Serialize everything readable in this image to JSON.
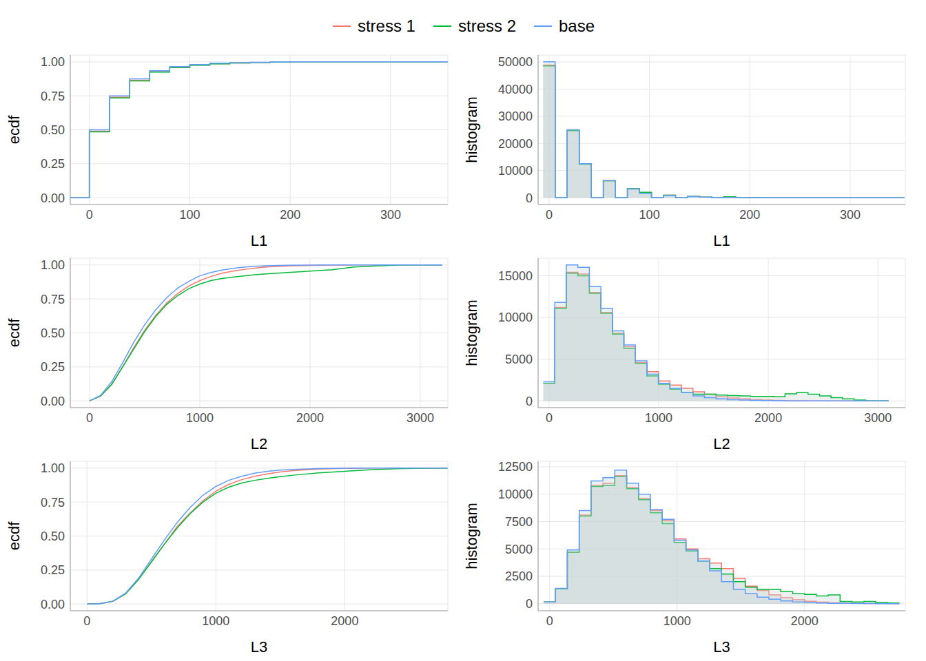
{
  "chart_data": [
    {
      "type": "line",
      "line_style": "step",
      "legend": "top",
      "grid": true,
      "xlabel": "L1",
      "ylabel": "ecdf",
      "x": [
        -19,
        0,
        20,
        40,
        60,
        80,
        100,
        120,
        140,
        160,
        180,
        200,
        357
      ],
      "series": [
        {
          "name": "stress 1",
          "color": "#F8766D",
          "values": [
            0,
            0.49,
            0.74,
            0.865,
            0.928,
            0.96,
            0.976,
            0.987,
            0.992,
            0.996,
            0.998,
            1,
            1
          ]
        },
        {
          "name": "stress 2",
          "color": "#00BA38",
          "values": [
            0,
            0.485,
            0.735,
            0.86,
            0.925,
            0.957,
            0.975,
            0.986,
            0.992,
            0.995,
            0.998,
            1,
            1
          ]
        },
        {
          "name": "base",
          "color": "#619CFF",
          "values": [
            0,
            0.5,
            0.75,
            0.875,
            0.935,
            0.965,
            0.98,
            0.99,
            0.994,
            0.997,
            0.999,
            1,
            1
          ]
        }
      ],
      "xlim": [
        -19,
        357
      ],
      "xticks": [
        0,
        100,
        200,
        300
      ],
      "ylim": [
        -0.05,
        1.05
      ],
      "yticks": [
        {
          "value": 0,
          "label": "0.00"
        },
        {
          "value": 0.25,
          "label": "0.25"
        },
        {
          "value": 0.5,
          "label": "0.50"
        },
        {
          "value": 0.75,
          "label": "0.75"
        },
        {
          "value": 1,
          "label": "1.00"
        }
      ]
    },
    {
      "type": "histogram",
      "grid": true,
      "xlabel": "L1",
      "ylabel": "histogram",
      "bins": [
        -6,
        6,
        18,
        30,
        42,
        54,
        66,
        78,
        90,
        102,
        114,
        126,
        138,
        150,
        162,
        174,
        186,
        198,
        210,
        222,
        234,
        246,
        258,
        270,
        282,
        294,
        306,
        318,
        330,
        342,
        354
      ],
      "series": [
        {
          "name": "stress 1",
          "color": "#F8766D",
          "values": [
            48800,
            0,
            24800,
            12400,
            0,
            6300,
            0,
            3300,
            1800,
            0,
            900,
            0,
            450,
            230,
            0,
            120,
            0,
            60,
            0,
            0,
            0,
            0,
            0,
            0,
            0,
            0,
            0,
            0,
            0,
            0
          ]
        },
        {
          "name": "stress 2",
          "color": "#00BA38",
          "values": [
            48500,
            0,
            24700,
            12300,
            0,
            6200,
            0,
            3300,
            2000,
            0,
            950,
            0,
            500,
            250,
            0,
            350,
            0,
            80,
            0,
            0,
            0,
            0,
            0,
            0,
            0,
            0,
            0,
            0,
            0,
            0
          ]
        },
        {
          "name": "base",
          "color": "#619CFF",
          "values": [
            50000,
            0,
            25000,
            12500,
            0,
            6300,
            0,
            3200,
            1600,
            0,
            800,
            0,
            400,
            200,
            0,
            100,
            0,
            50,
            0,
            0,
            0,
            0,
            0,
            0,
            0,
            0,
            0,
            0,
            0,
            0
          ]
        }
      ],
      "xlim": [
        -11,
        355
      ],
      "xticks": [
        0,
        100,
        200,
        300
      ],
      "ylim": [
        -2500,
        52500
      ],
      "yticks": [
        0,
        10000,
        20000,
        30000,
        40000,
        50000
      ]
    },
    {
      "type": "line",
      "grid": true,
      "xlabel": "L2",
      "ylabel": "ecdf",
      "x": [
        0,
        100,
        200,
        300,
        400,
        500,
        600,
        700,
        800,
        900,
        1000,
        1100,
        1200,
        1300,
        1400,
        1500,
        1600,
        1800,
        2000,
        2200,
        2400,
        2600,
        2800,
        3000,
        3200
      ],
      "series": [
        {
          "name": "stress 1",
          "color": "#F8766D",
          "values": [
            0,
            0.035,
            0.12,
            0.25,
            0.39,
            0.52,
            0.63,
            0.72,
            0.79,
            0.845,
            0.885,
            0.915,
            0.94,
            0.955,
            0.967,
            0.977,
            0.985,
            0.993,
            0.997,
            0.999,
            1,
            1,
            1,
            1,
            1
          ]
        },
        {
          "name": "stress 2",
          "color": "#00BA38",
          "values": [
            0,
            0.035,
            0.12,
            0.25,
            0.38,
            0.51,
            0.62,
            0.71,
            0.775,
            0.825,
            0.86,
            0.885,
            0.9,
            0.91,
            0.92,
            0.928,
            0.935,
            0.945,
            0.955,
            0.965,
            0.985,
            0.993,
            0.999,
            1,
            1
          ]
        },
        {
          "name": "base",
          "color": "#619CFF",
          "values": [
            0,
            0.04,
            0.14,
            0.28,
            0.43,
            0.56,
            0.67,
            0.76,
            0.83,
            0.88,
            0.92,
            0.945,
            0.962,
            0.975,
            0.984,
            0.99,
            0.994,
            0.998,
            0.999,
            1,
            1,
            1,
            1,
            1,
            1
          ]
        }
      ],
      "xlim": [
        -175,
        3250
      ],
      "xticks": [
        0,
        1000,
        2000,
        3000
      ],
      "ylim": [
        -0.05,
        1.05
      ],
      "yticks": [
        {
          "value": 0,
          "label": "0.00"
        },
        {
          "value": 0.25,
          "label": "0.25"
        },
        {
          "value": 0.5,
          "label": "0.50"
        },
        {
          "value": 0.75,
          "label": "0.75"
        },
        {
          "value": 1,
          "label": "1.00"
        }
      ]
    },
    {
      "type": "histogram",
      "grid": true,
      "xlabel": "L2",
      "ylabel": "histogram",
      "bins": [
        -52.5,
        52.5,
        157.5,
        262.5,
        367.5,
        472.5,
        577.5,
        682.5,
        787.5,
        892.5,
        997.5,
        1102.5,
        1207.5,
        1312.5,
        1417.5,
        1522.5,
        1627.5,
        1732.5,
        1837.5,
        1942.5,
        2047.5,
        2152.5,
        2257.5,
        2362.5,
        2467.5,
        2572.5,
        2677.5,
        2782.5,
        2887.5,
        2992.5,
        3097.5
      ],
      "series": [
        {
          "name": "stress 1",
          "color": "#F8766D",
          "values": [
            2100,
            11200,
            15400,
            15200,
            13000,
            10600,
            8100,
            6500,
            4600,
            3500,
            2400,
            1900,
            1500,
            1100,
            800,
            500,
            350,
            250,
            150,
            100,
            60,
            30,
            15,
            5,
            0,
            0,
            0,
            0,
            0,
            0
          ]
        },
        {
          "name": "stress 2",
          "color": "#00BA38",
          "values": [
            2100,
            11100,
            15300,
            15000,
            12900,
            10500,
            8000,
            6300,
            4500,
            3000,
            2000,
            1400,
            1000,
            800,
            800,
            700,
            650,
            600,
            550,
            550,
            500,
            850,
            1000,
            800,
            600,
            400,
            250,
            100,
            0,
            0
          ]
        },
        {
          "name": "base",
          "color": "#619CFF",
          "values": [
            2300,
            11800,
            16300,
            16000,
            13700,
            11100,
            8400,
            6700,
            4800,
            3200,
            2100,
            1500,
            1000,
            600,
            400,
            250,
            150,
            100,
            60,
            40,
            20,
            10,
            5,
            0,
            0,
            0,
            0,
            0,
            0,
            0
          ]
        }
      ],
      "xlim": [
        -100,
        3250
      ],
      "xticks": [
        0,
        1000,
        2000,
        3000
      ],
      "ylim": [
        -800,
        17100
      ],
      "yticks": [
        0,
        5000,
        10000,
        15000
      ]
    },
    {
      "type": "line",
      "grid": true,
      "xlabel": "L3",
      "ylabel": "ecdf",
      "x": [
        0,
        100,
        200,
        300,
        400,
        500,
        600,
        700,
        800,
        900,
        1000,
        1100,
        1200,
        1300,
        1400,
        1500,
        1600,
        1800,
        2000,
        2200,
        2400,
        2600,
        2800
      ],
      "series": [
        {
          "name": "stress 1",
          "color": "#F8766D",
          "values": [
            0,
            0.002,
            0.02,
            0.075,
            0.18,
            0.31,
            0.44,
            0.57,
            0.67,
            0.76,
            0.83,
            0.88,
            0.915,
            0.94,
            0.958,
            0.972,
            0.982,
            0.993,
            0.998,
            1,
            1,
            1,
            1
          ]
        },
        {
          "name": "stress 2",
          "color": "#00BA38",
          "values": [
            0,
            0.002,
            0.02,
            0.075,
            0.18,
            0.31,
            0.44,
            0.56,
            0.665,
            0.75,
            0.815,
            0.86,
            0.89,
            0.91,
            0.925,
            0.937,
            0.948,
            0.965,
            0.977,
            0.988,
            0.995,
            0.999,
            1
          ]
        },
        {
          "name": "base",
          "color": "#619CFF",
          "values": [
            0,
            0.002,
            0.02,
            0.08,
            0.19,
            0.33,
            0.47,
            0.6,
            0.71,
            0.8,
            0.865,
            0.91,
            0.94,
            0.962,
            0.976,
            0.985,
            0.991,
            0.997,
            0.999,
            1,
            1,
            1,
            1
          ]
        }
      ],
      "xlim": [
        -130,
        2800
      ],
      "xticks": [
        0,
        1000,
        2000
      ],
      "ylim": [
        -0.05,
        1.05
      ],
      "yticks": [
        {
          "value": 0,
          "label": "0.00"
        },
        {
          "value": 0.25,
          "label": "0.25"
        },
        {
          "value": 0.5,
          "label": "0.50"
        },
        {
          "value": 0.75,
          "label": "0.75"
        },
        {
          "value": 1,
          "label": "1.00"
        }
      ]
    },
    {
      "type": "histogram",
      "grid": true,
      "xlabel": "L3",
      "ylabel": "histogram",
      "bins": [
        -46.5,
        46.5,
        139.5,
        232.5,
        325.5,
        418.5,
        511.5,
        604.5,
        697.5,
        790.5,
        883.5,
        976.5,
        1069.5,
        1162.5,
        1255.5,
        1348.5,
        1441.5,
        1534.5,
        1627.5,
        1720.5,
        1813.5,
        1906.5,
        1999.5,
        2092.5,
        2185.5,
        2278.5,
        2371.5,
        2464.5,
        2557.5,
        2650.5,
        2743.5
      ],
      "series": [
        {
          "name": "stress 1",
          "color": "#F8766D",
          "values": [
            150,
            1350,
            4700,
            8100,
            10800,
            11000,
            11700,
            10600,
            9600,
            8500,
            7600,
            5900,
            5000,
            4100,
            3700,
            3200,
            2300,
            1600,
            1200,
            800,
            550,
            350,
            220,
            130,
            70,
            40,
            20,
            10,
            5,
            0
          ]
        },
        {
          "name": "stress 2",
          "color": "#00BA38",
          "values": [
            150,
            1350,
            4700,
            8000,
            10700,
            10800,
            11600,
            10500,
            9500,
            8300,
            7300,
            5600,
            4800,
            3900,
            3200,
            2700,
            2000,
            1500,
            1300,
            1300,
            1100,
            900,
            850,
            700,
            800,
            200,
            150,
            200,
            100,
            50
          ]
        },
        {
          "name": "base",
          "color": "#619CFF",
          "values": [
            150,
            1400,
            4900,
            8500,
            11200,
            11500,
            12200,
            11000,
            10000,
            8600,
            7700,
            5800,
            4900,
            3900,
            3000,
            2000,
            1300,
            900,
            600,
            400,
            250,
            150,
            100,
            50,
            30,
            20,
            10,
            5,
            0,
            0
          ]
        }
      ],
      "xlim": [
        -90,
        2790
      ],
      "xticks": [
        0,
        1000,
        2000
      ],
      "ylim": [
        -650,
        13000
      ],
      "yticks": [
        0,
        2500,
        5000,
        7500,
        10000,
        12500
      ]
    }
  ]
}
